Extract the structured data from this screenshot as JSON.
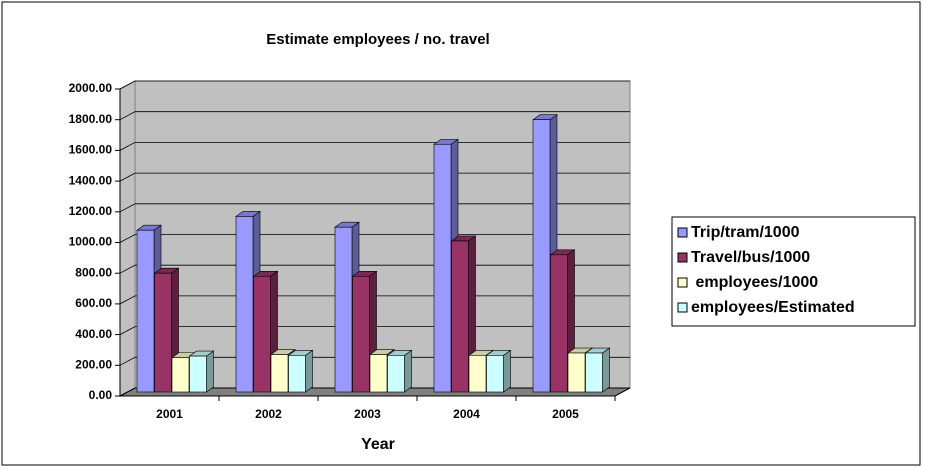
{
  "chart_data": {
    "type": "bar3d",
    "title": "Estimate employees / no. travel",
    "x_label": "Year",
    "categories": [
      "2001",
      "2002",
      "2003",
      "2004",
      "2005"
    ],
    "series": [
      {
        "name": "Trip/tram/1000",
        "color": "#9999ff",
        "values": [
          1080,
          1170,
          1100,
          1640,
          1800
        ]
      },
      {
        "name": "Travel/bus/1000",
        "color": "#993366",
        "values": [
          800,
          780,
          780,
          1010,
          920
        ]
      },
      {
        "name": " employees/1000",
        "color": "#ffffcc",
        "values": [
          250,
          270,
          270,
          265,
          280
        ]
      },
      {
        "name": "employees/Estimated",
        "color": "#ccffff",
        "values": [
          260,
          265,
          265,
          265,
          280
        ]
      }
    ],
    "ylim": [
      0,
      2000
    ],
    "yticks": [
      {
        "value": 0,
        "label": "0.00"
      },
      {
        "value": 200,
        "label": "200.00"
      },
      {
        "value": 400,
        "label": "400.00"
      },
      {
        "value": 600,
        "label": "600.00"
      },
      {
        "value": 800,
        "label": "800.00"
      },
      {
        "value": 1000,
        "label": "1000.00"
      },
      {
        "value": 1200,
        "label": "1200.00"
      },
      {
        "value": 1400,
        "label": "1400.00"
      },
      {
        "value": 1600,
        "label": "1600.00"
      },
      {
        "value": 1800,
        "label": "1800.00"
      },
      {
        "value": 2000,
        "label": "2000.00"
      }
    ],
    "grid": true
  }
}
